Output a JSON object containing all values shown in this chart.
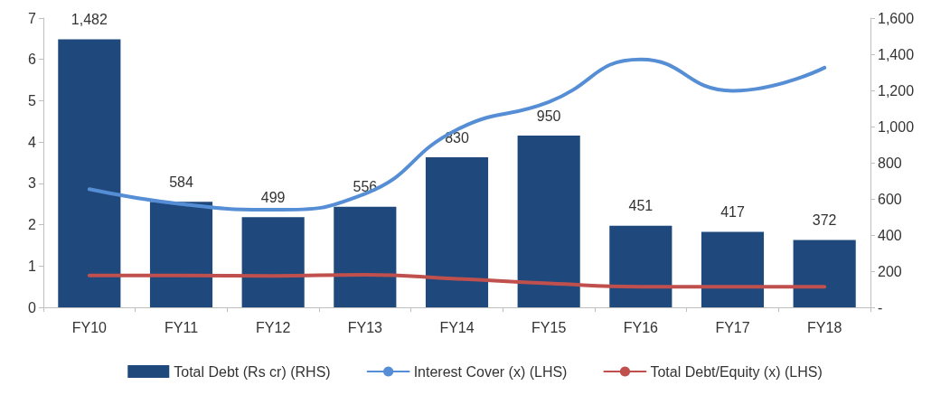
{
  "chart_data": {
    "type": "bar",
    "categories": [
      "FY10",
      "FY11",
      "FY12",
      "FY13",
      "FY14",
      "FY15",
      "FY16",
      "FY17",
      "FY18"
    ],
    "series": [
      {
        "name": "Total Debt (Rs cr) (RHS)",
        "axis": "y2",
        "color": "#1f497d",
        "values": [
          1482,
          584,
          499,
          556,
          830,
          950,
          451,
          417,
          372
        ],
        "value_labels": [
          "1,482",
          "584",
          "499",
          "556",
          "830",
          "950",
          "451",
          "417",
          "372"
        ]
      },
      {
        "name": "Interest Cover (x) (LHS)",
        "type": "line",
        "color": "#558ed5",
        "values": [
          2.86,
          2.5,
          2.36,
          2.75,
          4.3,
          4.97,
          6.0,
          5.24,
          5.8
        ]
      },
      {
        "name": "Total Debt/Equity (x) (LHS)",
        "type": "line",
        "color": "#c0504d",
        "values": [
          0.77,
          0.77,
          0.76,
          0.79,
          0.69,
          0.58,
          0.5,
          0.5,
          0.5
        ]
      }
    ],
    "ylim": [
      0,
      7
    ],
    "yticks": [
      0,
      1,
      2,
      3,
      4,
      5,
      6,
      7
    ],
    "y2lim": [
      0,
      1600
    ],
    "y2ticks": [
      {
        "value": 0,
        "label": "-"
      },
      {
        "value": 200,
        "label": "200"
      },
      {
        "value": 400,
        "label": "400"
      },
      {
        "value": 600,
        "label": "600"
      },
      {
        "value": 800,
        "label": "800"
      },
      {
        "value": 1000,
        "label": "1,000"
      },
      {
        "value": 1200,
        "label": "1,200"
      },
      {
        "value": 1400,
        "label": "1,400"
      },
      {
        "value": 1600,
        "label": "1,600"
      }
    ],
    "grid": false,
    "legend": "bottom"
  }
}
